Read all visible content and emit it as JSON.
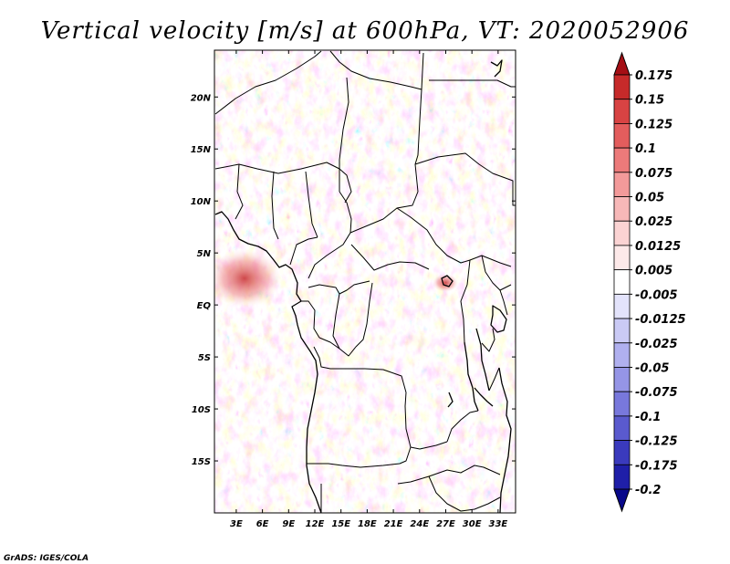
{
  "chart_data": {
    "type": "heatmap",
    "title": "Vertical velocity [m/s] at 600hPa, VT: 2020052906",
    "variable": "Vertical velocity",
    "units": "m/s",
    "level": "600hPa",
    "valid_time": "2020052906",
    "x_ticks": [
      "3E",
      "6E",
      "9E",
      "12E",
      "15E",
      "18E",
      "21E",
      "24E",
      "27E",
      "30E",
      "33E"
    ],
    "y_ticks": [
      "20N",
      "15N",
      "10N",
      "5N",
      "EQ",
      "5S",
      "10S",
      "15S"
    ],
    "lon_range": [
      0.5,
      35
    ],
    "lat_range": [
      -20,
      24.5
    ],
    "colorbar": {
      "labels": [
        "0.175",
        "0.15",
        "0.125",
        "0.1",
        "0.075",
        "0.05",
        "0.025",
        "0.0125",
        "0.005",
        "-0.005",
        "-0.0125",
        "-0.025",
        "-0.05",
        "-0.075",
        "-0.1",
        "-0.125",
        "-0.175",
        "-0.2"
      ],
      "colors": [
        "#a50f15",
        "#c62a2a",
        "#d84343",
        "#e35d5d",
        "#ec7a7a",
        "#f39a9a",
        "#f7b8b8",
        "#fbd3d3",
        "#fde9e9",
        "#ffffff",
        "#e3e3fb",
        "#cacaf5",
        "#b0b0ef",
        "#9595e6",
        "#7878dc",
        "#5a5ace",
        "#3a3abd",
        "#1f1fa8",
        "#08088a"
      ],
      "extend": "both"
    }
  },
  "footer": "GrADS: IGES/COLA"
}
